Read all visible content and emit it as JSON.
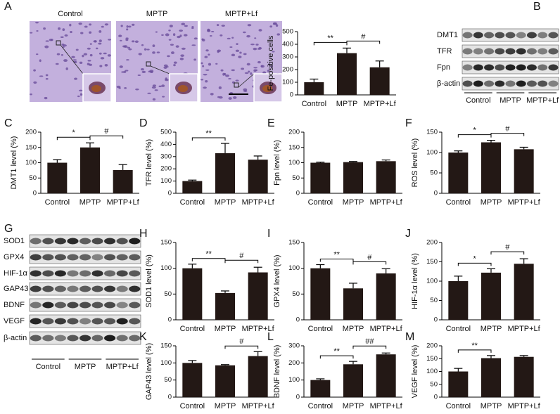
{
  "figure": {
    "image_panel": {
      "letter": "A",
      "labels": [
        "Control",
        "MPTP",
        "MPTP+Lf"
      ]
    },
    "blots": [
      {
        "letter": "B",
        "rows": [
          "DMT1",
          "TFR",
          "Fpn",
          "β-actin"
        ],
        "groups": [
          "Control",
          "MPTP",
          "MPTP+Lf"
        ]
      },
      {
        "letter": "G",
        "rows": [
          "SOD1",
          "GPX4",
          "HIF-1α",
          "GAP43",
          "BDNF",
          "VEGF",
          "β-actin"
        ],
        "groups": [
          "Control",
          "MPTP",
          "MPTP+Lf"
        ]
      }
    ]
  },
  "chart_data": [
    {
      "type": "bar",
      "ylabel": "Fe-positive cells",
      "categories": [
        "Control",
        "MPTP",
        "MPTP+Lf"
      ],
      "values": [
        100,
        330,
        218
      ],
      "errors": [
        25,
        40,
        50
      ],
      "color": "#231815",
      "ylim": [
        0,
        500
      ],
      "yticks": [
        0,
        100,
        200,
        300,
        400,
        500
      ],
      "annotations": [
        {
          "text": "**",
          "from": "Control",
          "to": "MPTP"
        },
        {
          "text": "#",
          "from": "MPTP",
          "to": "MPTP+Lf"
        }
      ]
    },
    {
      "type": "bar",
      "letter": "C",
      "ylabel": "DMT1 level (%)",
      "categories": [
        "Control",
        "MPTP",
        "MPTP+Lf"
      ],
      "values": [
        100,
        150,
        76
      ],
      "errors": [
        10,
        15,
        18
      ],
      "color": "#231815",
      "ylim": [
        0,
        200
      ],
      "yticks": [
        0,
        50,
        100,
        150,
        200
      ],
      "annotations": [
        {
          "text": "*",
          "from": "Control",
          "to": "MPTP"
        },
        {
          "text": "#",
          "from": "MPTP",
          "to": "MPTP+Lf"
        }
      ]
    },
    {
      "type": "bar",
      "letter": "D",
      "ylabel": "TFR level (%)",
      "categories": [
        "Control",
        "MPTP",
        "MPTP+Lf"
      ],
      "values": [
        100,
        328,
        275
      ],
      "errors": [
        8,
        80,
        30
      ],
      "color": "#231815",
      "ylim": [
        0,
        500
      ],
      "yticks": [
        0,
        100,
        200,
        300,
        400,
        500
      ],
      "annotations": [
        {
          "text": "**",
          "from": "Control",
          "to": "MPTP"
        }
      ]
    },
    {
      "type": "bar",
      "letter": "E",
      "ylabel": "Fpn level (%)",
      "categories": [
        "Control",
        "MPTP",
        "MPTP+Lf"
      ],
      "values": [
        100,
        102,
        105
      ],
      "errors": [
        2,
        2,
        4
      ],
      "color": "#231815",
      "ylim": [
        0,
        200
      ],
      "yticks": [
        0,
        50,
        100,
        150,
        200
      ],
      "annotations": []
    },
    {
      "type": "bar",
      "letter": "F",
      "ylabel": "ROS level (%)",
      "categories": [
        "Control",
        "MPTP",
        "MPTP+Lf"
      ],
      "values": [
        100,
        125,
        108
      ],
      "errors": [
        4,
        5,
        5
      ],
      "color": "#231815",
      "ylim": [
        0,
        150
      ],
      "yticks": [
        0,
        50,
        100,
        150
      ],
      "annotations": [
        {
          "text": "*",
          "from": "Control",
          "to": "MPTP"
        },
        {
          "text": "#",
          "from": "MPTP",
          "to": "MPTP+Lf"
        }
      ]
    },
    {
      "type": "bar",
      "letter": "H",
      "ylabel": "SOD1 level (%)",
      "categories": [
        "Control",
        "MPTP",
        "MPTP+Lf"
      ],
      "values": [
        100,
        52,
        92
      ],
      "errors": [
        8,
        4,
        10
      ],
      "color": "#231815",
      "ylim": [
        0,
        150
      ],
      "yticks": [
        0,
        50,
        100,
        150
      ],
      "annotations": [
        {
          "text": "**",
          "from": "Control",
          "to": "MPTP"
        },
        {
          "text": "#",
          "from": "MPTP",
          "to": "MPTP+Lf"
        }
      ]
    },
    {
      "type": "bar",
      "letter": "I",
      "ylabel": "GPX4 level (%)",
      "categories": [
        "Control",
        "MPTP",
        "MPTP+Lf"
      ],
      "values": [
        100,
        61,
        90
      ],
      "errors": [
        7,
        10,
        9
      ],
      "color": "#231815",
      "ylim": [
        0,
        150
      ],
      "yticks": [
        0,
        50,
        100,
        150
      ],
      "annotations": [
        {
          "text": "**",
          "from": "Control",
          "to": "MPTP"
        },
        {
          "text": "#",
          "from": "MPTP",
          "to": "MPTP+Lf"
        }
      ]
    },
    {
      "type": "bar",
      "letter": "J",
      "ylabel": "HIF-1α  level (%)",
      "categories": [
        "Control",
        "MPTP",
        "MPTP+Lf"
      ],
      "values": [
        100,
        122,
        145
      ],
      "errors": [
        13,
        10,
        13
      ],
      "color": "#231815",
      "ylim": [
        0,
        200
      ],
      "yticks": [
        0,
        50,
        100,
        150,
        200
      ],
      "annotations": [
        {
          "text": "*",
          "from": "Control",
          "to": "MPTP"
        },
        {
          "text": "#",
          "from": "MPTP",
          "to": "MPTP+Lf"
        }
      ]
    },
    {
      "type": "bar",
      "letter": "K",
      "ylabel": "GAP43 level (%)",
      "categories": [
        "Control",
        "MPTP",
        "MPTP+Lf"
      ],
      "values": [
        100,
        93,
        120
      ],
      "errors": [
        7,
        2,
        13
      ],
      "color": "#231815",
      "ylim": [
        0,
        150
      ],
      "yticks": [
        0,
        50,
        100,
        150
      ],
      "annotations": [
        {
          "text": "#",
          "from": "MPTP",
          "to": "MPTP+Lf"
        }
      ]
    },
    {
      "type": "bar",
      "letter": "L",
      "ylabel": "BDNF level (%)",
      "categories": [
        "Control",
        "MPTP",
        "MPTP+Lf"
      ],
      "values": [
        100,
        192,
        250
      ],
      "errors": [
        7,
        17,
        8
      ],
      "color": "#231815",
      "ylim": [
        0,
        300
      ],
      "yticks": [
        0,
        100,
        200,
        300
      ],
      "annotations": [
        {
          "text": "**",
          "from": "Control",
          "to": "MPTP"
        },
        {
          "text": "##",
          "from": "MPTP",
          "to": "MPTP+Lf"
        }
      ]
    },
    {
      "type": "bar",
      "letter": "M",
      "ylabel": "VEGF level (%)",
      "categories": [
        "Control",
        "MPTP",
        "MPTP+Lf"
      ],
      "values": [
        100,
        152,
        157
      ],
      "errors": [
        12,
        10,
        5
      ],
      "color": "#231815",
      "ylim": [
        0,
        200
      ],
      "yticks": [
        0,
        50,
        100,
        150,
        200
      ],
      "annotations": [
        {
          "text": "**",
          "from": "Control",
          "to": "MPTP"
        }
      ]
    }
  ]
}
